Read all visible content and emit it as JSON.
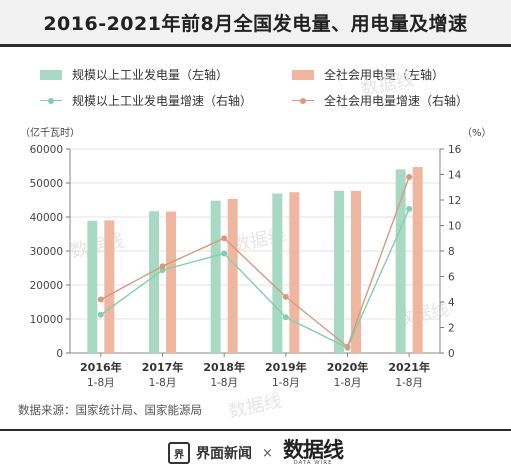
{
  "title": "2016-2021年前8月全国发电量、用电量及增速",
  "legend": [
    {
      "label": "规模以上工业发电量（左轴）",
      "kind": "bar",
      "color": "#a8d9c5"
    },
    {
      "label": "全社会用电量（左轴）",
      "kind": "bar",
      "color": "#efb7a0"
    },
    {
      "label": "规模以上工业发电量增速（右轴）",
      "kind": "line",
      "color": "#86cdb0"
    },
    {
      "label": "全社会用电量增速（右轴）",
      "kind": "line",
      "color": "#d79a7e"
    }
  ],
  "left_unit": "（亿千瓦时）",
  "right_unit": "（%）",
  "source": "数据来源：国家统计局、国家能源局",
  "brand_1": "界面新闻",
  "brand_times": "×",
  "brand_2": "数据线",
  "brand_2_sub": "DATA WIRE",
  "watermarks": [
    "数据线",
    "数据线",
    "数据线",
    "数据线",
    "数据线"
  ],
  "chart_data": {
    "type": "bar",
    "title": "2016-2021年前8月全国发电量、用电量及增速",
    "categories": [
      [
        "2016年",
        "1-8月"
      ],
      [
        "2017年",
        "1-8月"
      ],
      [
        "2018年",
        "1-8月"
      ],
      [
        "2019年",
        "1-8月"
      ],
      [
        "2020年",
        "1-8月"
      ],
      [
        "2021年",
        "1-8月"
      ]
    ],
    "series": [
      {
        "name": "规模以上工业发电量（左轴）",
        "kind": "bar",
        "axis": "left",
        "color": "#a8d9c5",
        "values": [
          38900,
          41700,
          44800,
          46900,
          47700,
          54000
        ]
      },
      {
        "name": "全社会用电量（左轴）",
        "kind": "bar",
        "axis": "left",
        "color": "#efb7a0",
        "values": [
          39000,
          41600,
          45300,
          47300,
          47700,
          54700
        ]
      },
      {
        "name": "规模以上工业发电量增速（右轴）",
        "kind": "line",
        "axis": "right",
        "color": "#86cdb0",
        "values": [
          3.0,
          6.5,
          7.8,
          2.8,
          0.4,
          11.3
        ]
      },
      {
        "name": "全社会用电量增速（右轴）",
        "kind": "line",
        "axis": "right",
        "color": "#d79a7e",
        "values": [
          4.2,
          6.8,
          9.0,
          4.4,
          0.5,
          13.8
        ]
      }
    ],
    "y_left": {
      "min": 0,
      "max": 60000,
      "ticks": [
        0,
        10000,
        20000,
        30000,
        40000,
        50000,
        60000
      ]
    },
    "y_right": {
      "min": 0,
      "max": 16,
      "ticks": [
        0,
        2,
        4,
        6,
        8,
        10,
        12,
        14,
        16
      ]
    },
    "grid": true,
    "legend_position": "top"
  }
}
